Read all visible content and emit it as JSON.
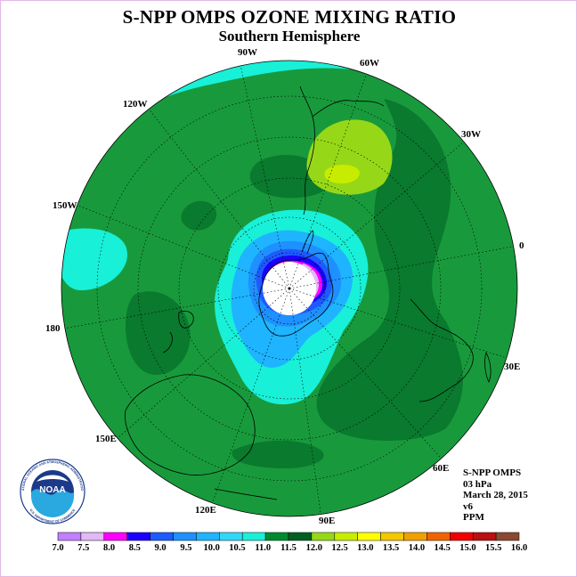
{
  "title": "S-NPP OMPS OZONE MIXING RATIO",
  "subtitle": "Southern Hemisphere",
  "longitude_labels": [
    {
      "id": "90w",
      "text": "90W"
    },
    {
      "id": "60w",
      "text": "60W"
    },
    {
      "id": "30w",
      "text": "30W"
    },
    {
      "id": "0",
      "text": "0"
    },
    {
      "id": "30e",
      "text": "30E"
    },
    {
      "id": "60e",
      "text": "60E"
    },
    {
      "id": "90e",
      "text": "90E"
    },
    {
      "id": "120e",
      "text": "120E"
    },
    {
      "id": "150e",
      "text": "150E"
    },
    {
      "id": "180",
      "text": "180"
    },
    {
      "id": "150w",
      "text": "150W"
    },
    {
      "id": "120w",
      "text": "120W"
    }
  ],
  "info": {
    "instrument": "S-NPP OMPS",
    "level": "03 hPa",
    "date": "March 28, 2015",
    "version": "v6",
    "units": "PPM"
  },
  "logo": {
    "text": "NOAA",
    "ring_text": "NATIONAL OCEANIC AND ATMOSPHERIC ADMINISTRATION",
    "ring_text_bottom": "U.S. DEPARTMENT OF COMMERCE"
  },
  "colorbar": {
    "ticks": [
      "7.0",
      "7.5",
      "8.0",
      "8.5",
      "9.0",
      "9.5",
      "10.0",
      "10.5",
      "11.0",
      "11.5",
      "12.0",
      "12.5",
      "13.0",
      "13.5",
      "14.0",
      "14.5",
      "15.0",
      "15.5",
      "16.0"
    ],
    "colors": [
      "#c080ff",
      "#e2b8f5",
      "#ff00ff",
      "#1c00ff",
      "#1e5aff",
      "#1e90ff",
      "#1eb4ff",
      "#30d8f8",
      "#18f0d8",
      "#008a30",
      "#006020",
      "#96d818",
      "#c8ec00",
      "#ffff00",
      "#f4c800",
      "#f0a000",
      "#f06400",
      "#f00000",
      "#ba1010",
      "#8a4a30"
    ]
  },
  "colors": {
    "outer_green": "#189a3c",
    "dark_green": "#0a7a2e",
    "cyan": "#18f0d8",
    "light_blue": "#1eb4ff",
    "blue": "#1e5aff",
    "deep_blue": "#1c00ff",
    "magenta": "#ff00ff",
    "lavender": "#e2b8f5",
    "lime": "#96d818",
    "yellow": "#c8ec00"
  }
}
